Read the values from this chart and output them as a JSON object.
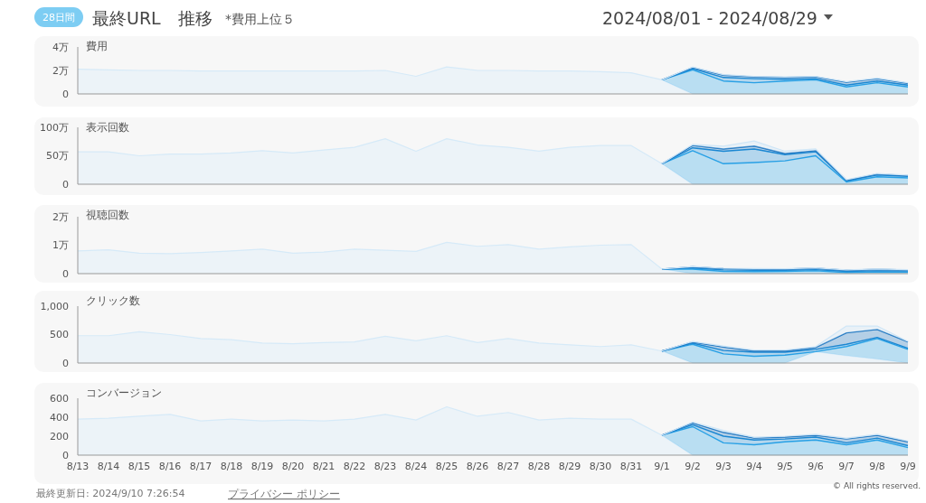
{
  "chart_data": [
    {
      "type": "area",
      "stacked": true,
      "title": "最終URL　推移",
      "subtitle": "*費用上位５",
      "annotations": [
        "28日間",
        "2024/08/01 - 2024/08/29"
      ],
      "ylabel": "費用",
      "tick_labels": "y",
      "categories": [
        null,
        null,
        null,
        null,
        null,
        null,
        null,
        null,
        null,
        null,
        null,
        null,
        null,
        null,
        null,
        null,
        null,
        null,
        null,
        null,
        null,
        null,
        null,
        null,
        null,
        null,
        null,
        null
      ],
      "ylim": [
        0,
        4
      ],
      "yticks": [
        0,
        {
          "value": 2,
          "label": "2万"
        },
        {
          "value": 4,
          "label": "4万"
        }
      ],
      "series": [
        {
          "color": "#d6eaf8",
          "values": [
            2.1,
            2.05,
            2,
            2,
            1.95,
            1.95,
            1.95,
            1.95,
            1.95,
            1.95,
            2,
            1.5,
            2.3,
            2,
            2,
            1.95,
            1.95,
            1.9,
            1.8,
            1.2,
            0,
            0,
            0,
            0,
            0,
            0,
            0,
            0
          ]
        },
        {
          "color": "#2aa4e8",
          "values": [
            null,
            null,
            null,
            null,
            null,
            null,
            null,
            null,
            null,
            null,
            null,
            null,
            null,
            null,
            null,
            null,
            null,
            null,
            null,
            0,
            2.05,
            1.1,
            0.95,
            1.1,
            1.2,
            0.6,
            0.95,
            0.6
          ]
        },
        {
          "color": "#1b8bd6",
          "values": [
            null,
            null,
            null,
            null,
            null,
            null,
            null,
            null,
            null,
            null,
            null,
            null,
            null,
            null,
            null,
            null,
            null,
            null,
            null,
            0,
            0.1,
            0.3,
            0.35,
            0.15,
            0.1,
            0.15,
            0.15,
            0.15
          ]
        },
        {
          "color": "#1a74c0",
          "values": [
            null,
            null,
            null,
            null,
            null,
            null,
            null,
            null,
            null,
            null,
            null,
            null,
            null,
            null,
            null,
            null,
            null,
            null,
            null,
            0,
            0.1,
            0.2,
            0.15,
            0.15,
            0.15,
            0.25,
            0.2,
            0.15
          ]
        },
        {
          "color": "#cfe6f7",
          "values": [
            null,
            null,
            null,
            null,
            null,
            null,
            null,
            null,
            null,
            null,
            null,
            null,
            null,
            null,
            null,
            null,
            null,
            null,
            null,
            0,
            0.05,
            0.05,
            0.05,
            0.05,
            0.05,
            0.05,
            0.05,
            0.05
          ]
        }
      ]
    },
    {
      "type": "area",
      "stacked": true,
      "ylabel": "表示回数",
      "tick_labels": "y",
      "categories": [
        null,
        null,
        null,
        null,
        null,
        null,
        null,
        null,
        null,
        null,
        null,
        null,
        null,
        null,
        null,
        null,
        null,
        null,
        null,
        null,
        null,
        null,
        null,
        null,
        null,
        null,
        null,
        null
      ],
      "ylim": [
        0,
        100
      ],
      "yticks": [
        0,
        {
          "value": 50,
          "label": "50万"
        },
        {
          "value": 100,
          "label": "100万"
        }
      ],
      "series": [
        {
          "color": "#d6eaf8",
          "values": [
            57,
            57,
            50,
            53,
            53,
            55,
            59,
            55,
            60,
            65,
            80,
            58,
            80,
            69,
            65,
            58,
            65,
            68,
            68,
            36,
            0,
            0,
            0,
            0,
            0,
            0,
            0,
            0
          ]
        },
        {
          "color": "#2aa4e8",
          "values": [
            null,
            null,
            null,
            null,
            null,
            null,
            null,
            null,
            null,
            null,
            null,
            null,
            null,
            null,
            null,
            null,
            null,
            null,
            null,
            0,
            59,
            36,
            38,
            41,
            50,
            4,
            13,
            11
          ]
        },
        {
          "color": "#1b8bd6",
          "values": [
            null,
            null,
            null,
            null,
            null,
            null,
            null,
            null,
            null,
            null,
            null,
            null,
            null,
            null,
            null,
            null,
            null,
            null,
            null,
            0,
            5,
            22,
            24,
            11,
            7,
            2,
            3,
            3
          ]
        },
        {
          "color": "#1a74c0",
          "values": [
            null,
            null,
            null,
            null,
            null,
            null,
            null,
            null,
            null,
            null,
            null,
            null,
            null,
            null,
            null,
            null,
            null,
            null,
            null,
            0,
            4,
            4,
            5,
            2,
            2,
            1,
            2,
            1
          ]
        },
        {
          "color": "#cfe6f7",
          "values": [
            null,
            null,
            null,
            null,
            null,
            null,
            null,
            null,
            null,
            null,
            null,
            null,
            null,
            null,
            null,
            null,
            null,
            null,
            null,
            0,
            2,
            5,
            9,
            4,
            3,
            1,
            1,
            1
          ]
        }
      ]
    },
    {
      "type": "area",
      "stacked": true,
      "ylabel": "視聴回数",
      "tick_labels": "y",
      "categories": [
        null,
        null,
        null,
        null,
        null,
        null,
        null,
        null,
        null,
        null,
        null,
        null,
        null,
        null,
        null,
        null,
        null,
        null,
        null,
        null,
        null,
        null,
        null,
        null,
        null,
        null,
        null,
        null
      ],
      "ylim": [
        0,
        2
      ],
      "yticks": [
        0,
        {
          "value": 1,
          "label": "1万"
        },
        {
          "value": 2,
          "label": "2万"
        }
      ],
      "series": [
        {
          "color": "#d6eaf8",
          "values": [
            0.8,
            0.84,
            0.72,
            0.7,
            0.74,
            0.8,
            0.86,
            0.72,
            0.76,
            0.86,
            0.82,
            0.78,
            1.1,
            0.96,
            1.02,
            0.86,
            0.94,
            1,
            1.02,
            0.16,
            0,
            0,
            0,
            0,
            0,
            0,
            0,
            0
          ]
        },
        {
          "color": "#2aa4e8",
          "values": [
            null,
            null,
            null,
            null,
            null,
            null,
            null,
            null,
            null,
            null,
            null,
            null,
            null,
            null,
            null,
            null,
            null,
            null,
            null,
            0,
            0.16,
            0.08,
            0.07,
            0.08,
            0.1,
            0.04,
            0.06,
            0.05
          ]
        },
        {
          "color": "#1b8bd6",
          "values": [
            null,
            null,
            null,
            null,
            null,
            null,
            null,
            null,
            null,
            null,
            null,
            null,
            null,
            null,
            null,
            null,
            null,
            null,
            null,
            0,
            0.04,
            0.05,
            0.05,
            0.04,
            0.04,
            0.04,
            0.04,
            0.04
          ]
        },
        {
          "color": "#1a74c0",
          "values": [
            null,
            null,
            null,
            null,
            null,
            null,
            null,
            null,
            null,
            null,
            null,
            null,
            null,
            null,
            null,
            null,
            null,
            null,
            null,
            0,
            0.04,
            0.05,
            0.05,
            0.04,
            0.05,
            0.04,
            0.05,
            0.04
          ]
        },
        {
          "color": "#cfe6f7",
          "values": [
            null,
            null,
            null,
            null,
            null,
            null,
            null,
            null,
            null,
            null,
            null,
            null,
            null,
            null,
            null,
            null,
            null,
            null,
            null,
            0,
            0.01,
            0.01,
            0.01,
            0.01,
            0.01,
            0.01,
            0.01,
            0.01
          ]
        }
      ]
    },
    {
      "type": "area",
      "stacked": true,
      "ylabel": "クリック数",
      "tick_labels": "y",
      "categories": [
        null,
        null,
        null,
        null,
        null,
        null,
        null,
        null,
        null,
        null,
        null,
        null,
        null,
        null,
        null,
        null,
        null,
        null,
        null,
        null,
        null,
        null,
        null,
        null,
        null,
        null,
        null,
        null
      ],
      "ylim": [
        0,
        1000
      ],
      "yticks": [
        0,
        500,
        {
          "value": 1000,
          "label": "1,000"
        }
      ],
      "series": [
        {
          "color": "#d6eaf8",
          "values": [
            480,
            480,
            550,
            500,
            430,
            410,
            350,
            340,
            360,
            370,
            470,
            390,
            480,
            360,
            430,
            350,
            320,
            290,
            320,
            210,
            0,
            0,
            0,
            0,
            200,
            130,
            70,
            0
          ]
        },
        {
          "color": "#2aa4e8",
          "values": [
            null,
            null,
            null,
            null,
            null,
            null,
            null,
            null,
            null,
            null,
            null,
            null,
            null,
            null,
            null,
            null,
            null,
            null,
            null,
            0,
            330,
            160,
            120,
            140,
            0,
            160,
            360,
            240
          ]
        },
        {
          "color": "#1b8bd6",
          "values": [
            null,
            null,
            null,
            null,
            null,
            null,
            null,
            null,
            null,
            null,
            null,
            null,
            null,
            null,
            null,
            null,
            null,
            null,
            null,
            0,
            20,
            60,
            70,
            50,
            40,
            40,
            20,
            20
          ]
        },
        {
          "color": "#1a74c0",
          "values": [
            null,
            null,
            null,
            null,
            null,
            null,
            null,
            null,
            null,
            null,
            null,
            null,
            null,
            null,
            null,
            null,
            null,
            null,
            null,
            0,
            20,
            60,
            20,
            20,
            30,
            200,
            140,
            110
          ]
        },
        {
          "color": "#cfe6f7",
          "values": [
            null,
            null,
            null,
            null,
            null,
            null,
            null,
            null,
            null,
            null,
            null,
            null,
            null,
            null,
            null,
            null,
            null,
            null,
            null,
            0,
            10,
            20,
            20,
            20,
            20,
            120,
            60,
            10
          ]
        }
      ]
    },
    {
      "type": "area",
      "stacked": true,
      "ylabel": "コンバージョン",
      "annotations": [
        "最終更新日: 2024/9/10 7:26:54",
        "プライバシー ポリシー",
        "© All rights reserved."
      ],
      "categories": [
        "8/13",
        "8/14",
        "8/15",
        "8/16",
        "8/17",
        "8/18",
        "8/19",
        "8/20",
        "8/21",
        "8/22",
        "8/23",
        "8/24",
        "8/25",
        "8/26",
        "8/27",
        "8/28",
        "8/29",
        "8/30",
        "8/31",
        "9/1",
        "9/2",
        "9/3",
        "9/4",
        "9/5",
        "9/6",
        "9/7",
        "9/8",
        "9/9"
      ],
      "ylim": [
        0,
        600
      ],
      "yticks": [
        0,
        200,
        400,
        600
      ],
      "series": [
        {
          "color": "#d6eaf8",
          "values": [
            380,
            390,
            410,
            430,
            360,
            380,
            360,
            370,
            360,
            380,
            430,
            370,
            510,
            410,
            450,
            370,
            390,
            380,
            380,
            210,
            0,
            0,
            0,
            0,
            0,
            0,
            0,
            0
          ]
        },
        {
          "color": "#2aa4e8",
          "values": [
            null,
            null,
            null,
            null,
            null,
            null,
            null,
            null,
            null,
            null,
            null,
            null,
            null,
            null,
            null,
            null,
            null,
            null,
            null,
            0,
            300,
            130,
            110,
            140,
            160,
            110,
            160,
            80
          ]
        },
        {
          "color": "#1b8bd6",
          "values": [
            null,
            null,
            null,
            null,
            null,
            null,
            null,
            null,
            null,
            null,
            null,
            null,
            null,
            null,
            null,
            null,
            null,
            null,
            null,
            0,
            20,
            70,
            50,
            30,
            30,
            20,
            20,
            20
          ]
        },
        {
          "color": "#1a74c0",
          "values": [
            null,
            null,
            null,
            null,
            null,
            null,
            null,
            null,
            null,
            null,
            null,
            null,
            null,
            null,
            null,
            null,
            null,
            null,
            null,
            0,
            20,
            40,
            20,
            20,
            20,
            40,
            30,
            40
          ]
        },
        {
          "color": "#cfe6f7",
          "values": [
            null,
            null,
            null,
            null,
            null,
            null,
            null,
            null,
            null,
            null,
            null,
            null,
            null,
            null,
            null,
            null,
            null,
            null,
            null,
            0,
            10,
            20,
            10,
            10,
            10,
            10,
            10,
            10
          ]
        }
      ]
    }
  ]
}
